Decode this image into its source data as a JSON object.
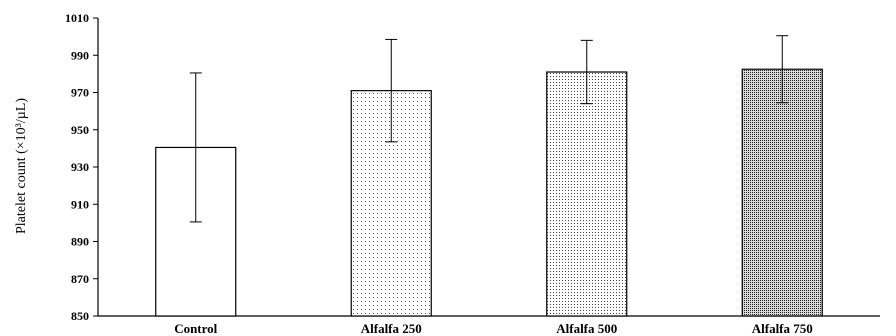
{
  "chart_data": {
    "type": "bar",
    "title": "",
    "xlabel": "",
    "ylabel": "Platelet count (×10³/µL)",
    "ylim": [
      850,
      1010
    ],
    "yticks": [
      850,
      870,
      890,
      910,
      930,
      950,
      970,
      990,
      1010
    ],
    "categories": [
      "Control",
      "Alfalfa 250",
      "Alfalfa 500",
      "Alfalfa 750"
    ],
    "values": [
      940.5,
      971,
      981,
      982.5
    ],
    "errors": [
      40,
      27.5,
      17,
      18
    ],
    "grid": false,
    "fill_patterns": [
      "none",
      "sparse-dots",
      "medium-dots",
      "dense-dots"
    ]
  }
}
